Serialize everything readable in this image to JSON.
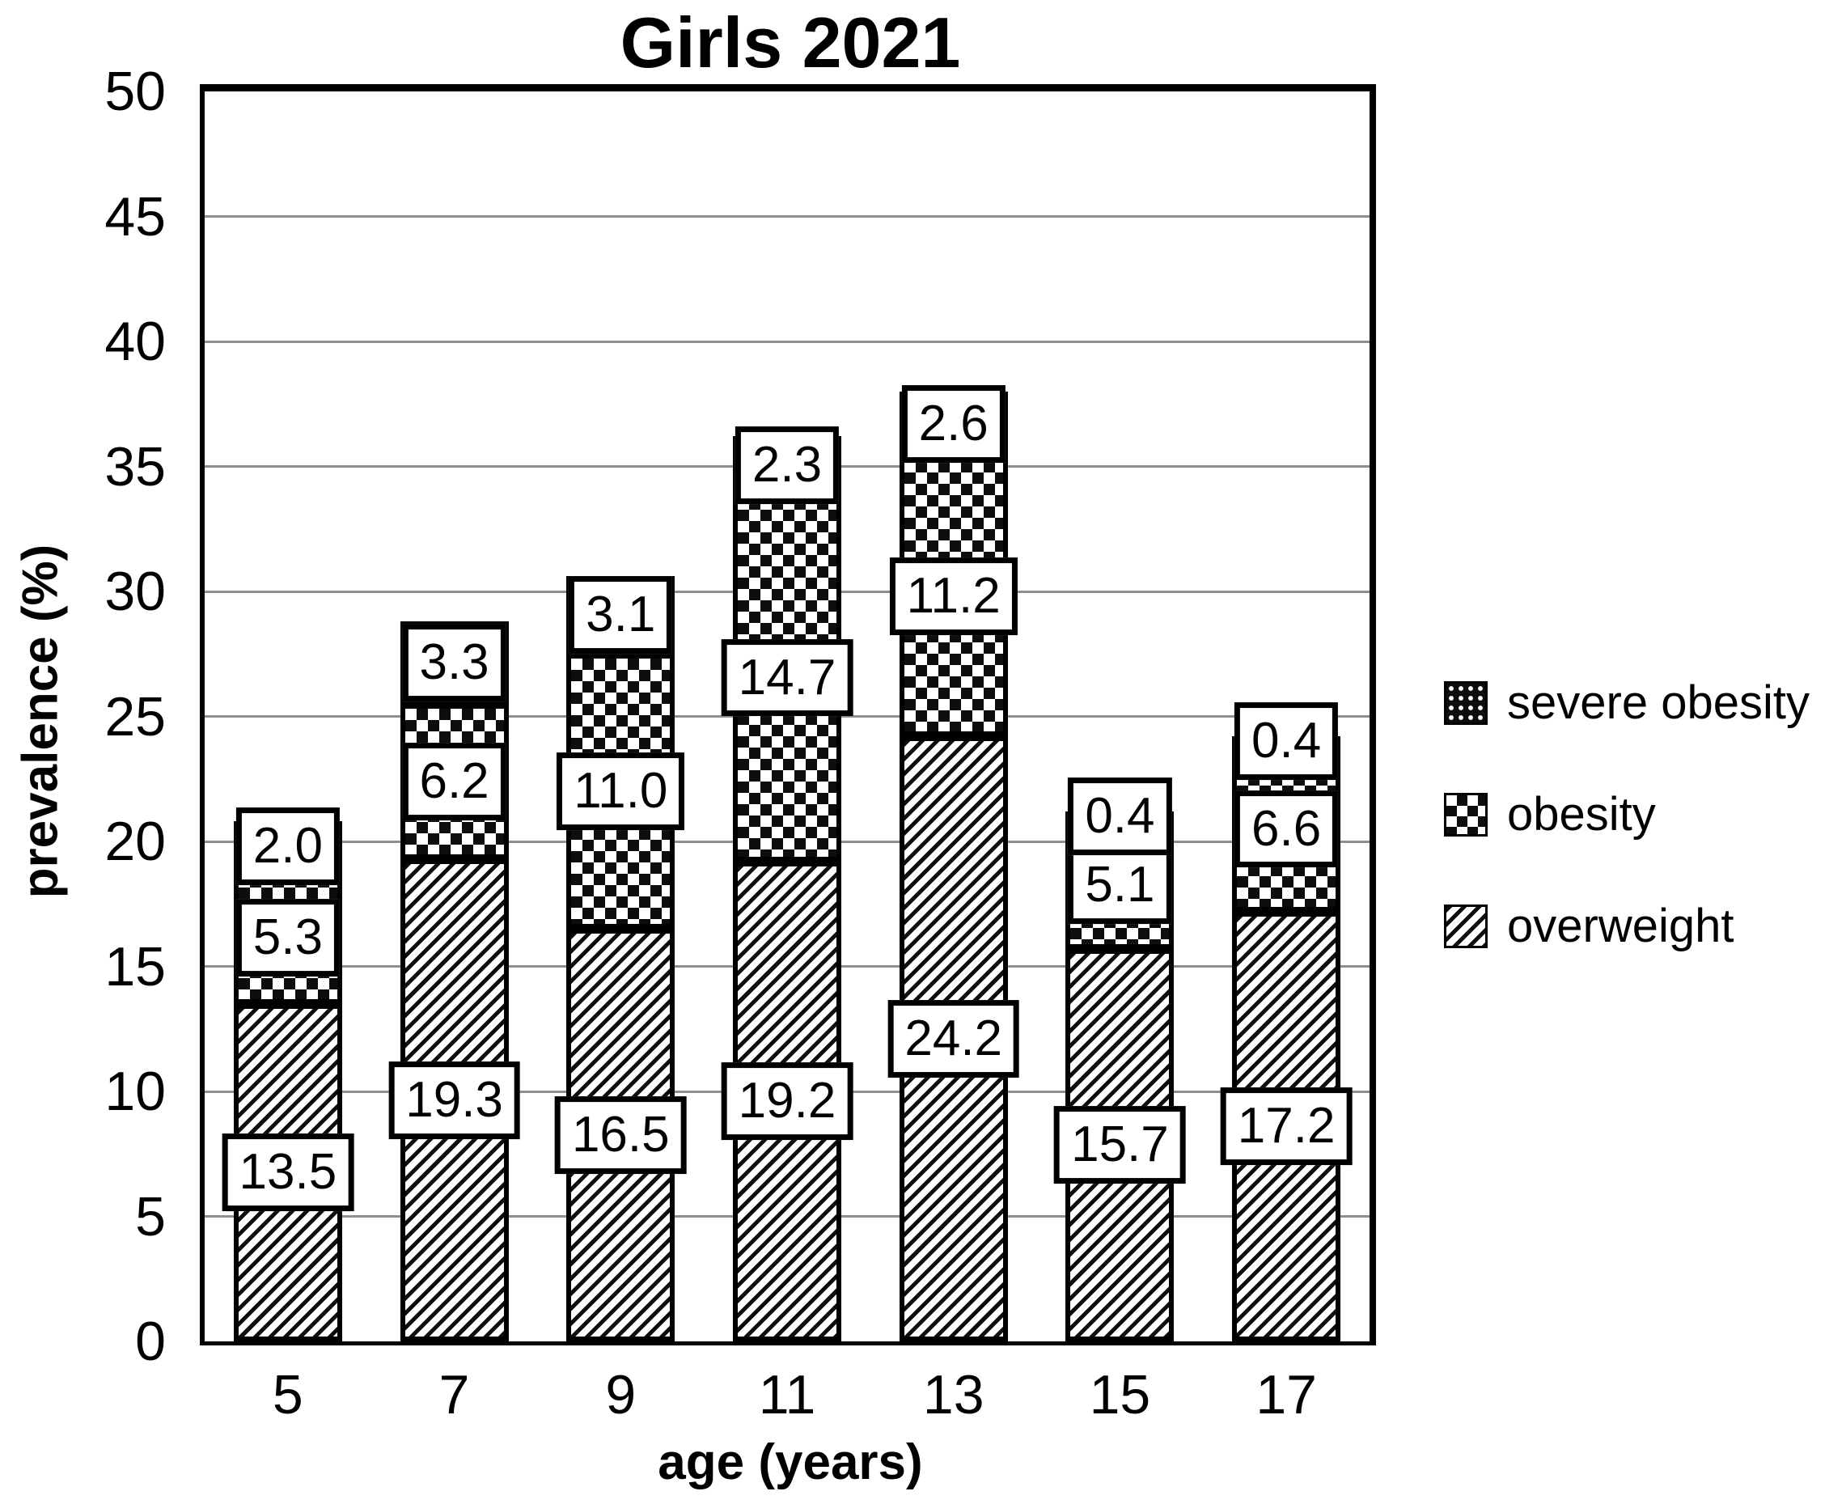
{
  "colors": {
    "ink": "#000000",
    "background": "#ffffff",
    "gridline": "#8f8f8f",
    "label_box_fill": "#ffffff"
  },
  "chart_data": {
    "type": "bar",
    "stacked": true,
    "title": "Girls 2021",
    "xlabel": "age (years)",
    "ylabel": "prevalence (%)",
    "ylim": [
      0,
      50
    ],
    "ytick_step": 5,
    "yticks": [
      "0",
      "5",
      "10",
      "15",
      "20",
      "25",
      "30",
      "35",
      "40",
      "45",
      "50"
    ],
    "grid": true,
    "categories": [
      "5",
      "7",
      "9",
      "11",
      "13",
      "15",
      "17"
    ],
    "series": [
      {
        "name": "overweight",
        "pattern": "diagonal-hatch",
        "values": [
          13.5,
          19.3,
          16.5,
          19.2,
          24.2,
          15.7,
          17.2
        ],
        "labels": [
          "13.5",
          "19.3",
          "16.5",
          "19.2",
          "24.2",
          "15.7",
          "17.2"
        ]
      },
      {
        "name": "obesity",
        "pattern": "checkerboard",
        "values": [
          5.3,
          6.2,
          11.0,
          14.7,
          11.2,
          5.1,
          6.6
        ],
        "labels": [
          "5.3",
          "6.2",
          "11.0",
          "14.7",
          "11.2",
          "5.1",
          "6.6"
        ]
      },
      {
        "name": "severe obesity",
        "pattern": "white-dots-on-black",
        "values": [
          2.0,
          3.3,
          3.1,
          2.3,
          2.6,
          0.4,
          0.4
        ],
        "labels": [
          "2.0",
          "3.3",
          "3.1",
          "2.3",
          "2.6",
          "0.4",
          "0.4"
        ]
      }
    ],
    "bar_totals": [
      20.8,
      28.8,
      30.6,
      36.2,
      38.0,
      21.2,
      24.2
    ],
    "legend": {
      "position": "right",
      "items": [
        {
          "label": "severe obesity",
          "pattern": "white-dots-on-black"
        },
        {
          "label": "obesity",
          "pattern": "checkerboard"
        },
        {
          "label": "overweight",
          "pattern": "diagonal-hatch"
        }
      ]
    }
  }
}
